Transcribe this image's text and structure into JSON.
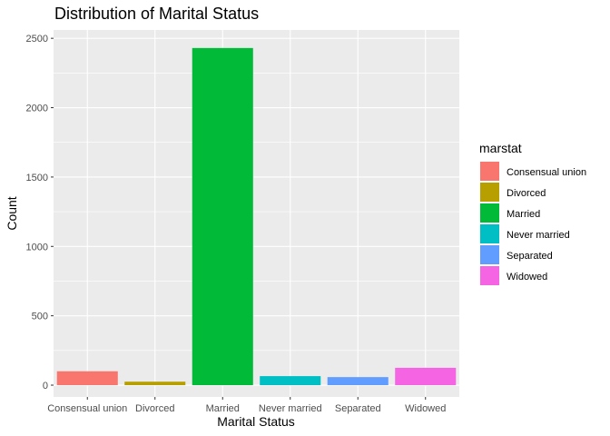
{
  "chart_data": {
    "type": "bar",
    "title": "Distribution of Marital Status",
    "xlabel": "Marital Status",
    "ylabel": "Count",
    "categories": [
      "Consensual union",
      "Divorced",
      "Married",
      "Never married",
      "Separated",
      "Widowed"
    ],
    "values": [
      100,
      25,
      2430,
      65,
      58,
      125
    ],
    "colors": [
      "#F8766D",
      "#B79F00",
      "#00BA38",
      "#00BFC4",
      "#619CFF",
      "#F564E3"
    ],
    "ylim": [
      -85,
      2560
    ],
    "yticks": [
      0,
      500,
      1000,
      1500,
      2000,
      2500
    ],
    "grid": true,
    "panel_background": "#EBEBEB",
    "legend": {
      "title": "marstat",
      "placement": "right",
      "entries": [
        "Consensual union",
        "Divorced",
        "Married",
        "Never married",
        "Separated",
        "Widowed"
      ]
    }
  }
}
